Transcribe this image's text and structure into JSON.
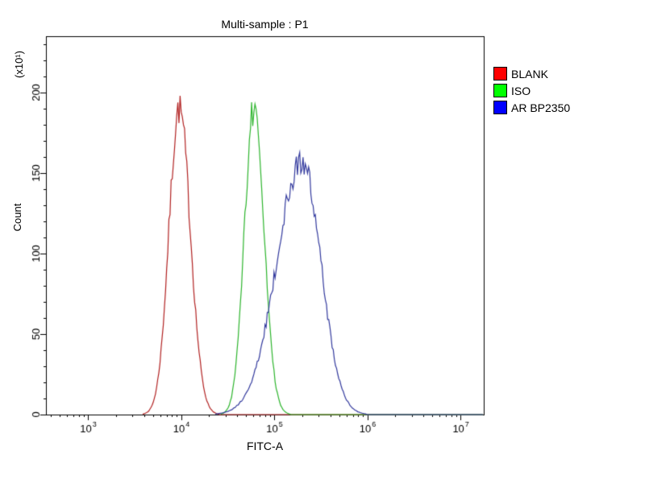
{
  "title": "Multi-sample : P1",
  "axes": {
    "x_label": "FITC-A",
    "y_label": "Count",
    "y_unit_label": "(x10¹)"
  },
  "chart_data": {
    "type": "line",
    "title": "Multi-sample : P1",
    "xlabel": "FITC-A",
    "ylabel": "Count",
    "y_unit_label": "(x10^1)",
    "x_scale": "log10",
    "x_range_log10": [
      2.55,
      7.25
    ],
    "x_major_tick_exponents": [
      3,
      4,
      5,
      6,
      7
    ],
    "ylim": [
      0,
      235
    ],
    "y_major_ticks": [
      0,
      50,
      100,
      150,
      200
    ],
    "y_minor_step": 10,
    "grid": false,
    "legend_position": "top-right",
    "series": [
      {
        "name": "BLANK",
        "curve_color": "#b22222",
        "legend_color": "#ff0000",
        "peak_x": 9500,
        "peak_log10": 3.98,
        "sigma_left": 0.11,
        "sigma_right": 0.12,
        "peak_height": 190
      },
      {
        "name": "ISO",
        "curve_color": "#2db52d",
        "legend_color": "#00ff00",
        "peak_x": 60000,
        "peak_log10": 4.78,
        "sigma_left": 0.1,
        "sigma_right": 0.11,
        "peak_height": 189
      },
      {
        "name": "AR BP2350",
        "curve_color": "#333a9e",
        "legend_color": "#0000ff",
        "peak_x": 200000,
        "peak_log10": 5.3,
        "sigma_left": 0.27,
        "sigma_right": 0.2,
        "peak_height": 158
      }
    ]
  }
}
